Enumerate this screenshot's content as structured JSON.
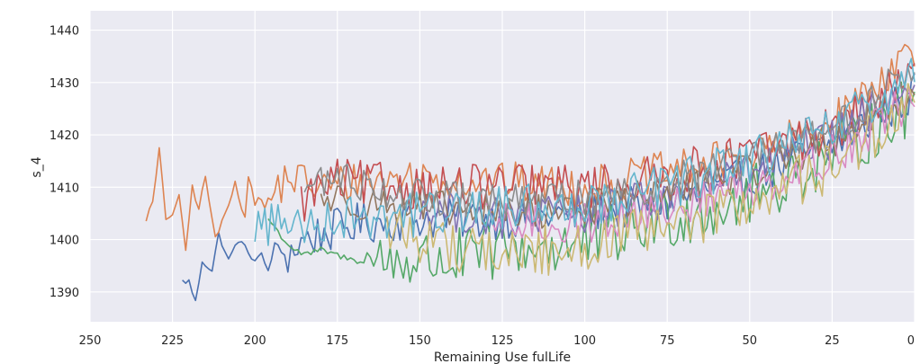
{
  "chart_data": {
    "type": "line",
    "xlabel": "Remaining Use fulLife",
    "ylabel": "s_4",
    "xlim": [
      250,
      0
    ],
    "ylim": [
      1384.3,
      1443.7
    ],
    "x_inverted": true,
    "grid": true,
    "legend": "none",
    "background": "#eaeaf2",
    "xticks": [
      250,
      225,
      200,
      175,
      150,
      125,
      100,
      75,
      50,
      25,
      0
    ],
    "yticks": [
      1390,
      1400,
      1410,
      1420,
      1430,
      1440
    ],
    "series": [
      {
        "color": "#4c72b0",
        "start_rul": 222,
        "start": 1392,
        "end": 1428,
        "amp": 4.0,
        "keypoints": [
          [
            222,
            1392
          ],
          [
            220,
            1392
          ],
          [
            218,
            1388
          ],
          [
            216,
            1396
          ],
          [
            213,
            1394
          ],
          [
            211,
            1401
          ],
          [
            208,
            1396
          ],
          [
            205,
            1400
          ],
          [
            200,
            1396
          ],
          [
            198,
            1397
          ],
          [
            196,
            1394
          ],
          [
            194,
            1399
          ],
          [
            190,
            1397
          ],
          [
            185,
            1400
          ],
          [
            180,
            1401
          ],
          [
            170,
            1403
          ],
          [
            150,
            1404
          ],
          [
            125,
            1404
          ],
          [
            100,
            1405
          ],
          [
            75,
            1407
          ],
          [
            50,
            1412
          ],
          [
            25,
            1418
          ],
          [
            0,
            1428
          ]
        ]
      },
      {
        "color": "#dd8452",
        "start_rul": 233,
        "start": 1404,
        "end": 1437,
        "amp": 4.0,
        "keypoints": [
          [
            233,
            1404
          ],
          [
            231,
            1407
          ],
          [
            229,
            1417
          ],
          [
            227,
            1404
          ],
          [
            225,
            1405
          ],
          [
            223,
            1408
          ],
          [
            221,
            1398
          ],
          [
            219,
            1410
          ],
          [
            217,
            1406
          ],
          [
            215,
            1412
          ],
          [
            212,
            1400
          ],
          [
            209,
            1405
          ],
          [
            206,
            1411
          ],
          [
            203,
            1404
          ],
          [
            201,
            1412
          ],
          [
            198,
            1405
          ],
          [
            196,
            1407
          ],
          [
            193,
            1410
          ],
          [
            190,
            1412
          ],
          [
            185,
            1411
          ],
          [
            180,
            1410
          ],
          [
            170,
            1411
          ],
          [
            150,
            1412
          ],
          [
            125,
            1411
          ],
          [
            100,
            1410
          ],
          [
            75,
            1413
          ],
          [
            50,
            1416
          ],
          [
            25,
            1422
          ],
          [
            0,
            1437
          ]
        ]
      },
      {
        "color": "#55a868",
        "start_rul": 196,
        "start": 1404,
        "end": 1426,
        "amp": 6.0,
        "keypoints": [
          [
            196,
            1404
          ],
          [
            190,
            1399
          ],
          [
            185,
            1397
          ],
          [
            180,
            1398
          ],
          [
            170,
            1396
          ],
          [
            160,
            1396
          ],
          [
            150,
            1396
          ],
          [
            140,
            1396
          ],
          [
            125,
            1398
          ],
          [
            110,
            1399
          ],
          [
            100,
            1399
          ],
          [
            90,
            1401
          ],
          [
            75,
            1404
          ],
          [
            50,
            1408
          ],
          [
            25,
            1416
          ],
          [
            0,
            1426
          ]
        ]
      },
      {
        "color": "#c44e52",
        "start_rul": 186,
        "start": 1407,
        "end": 1431,
        "amp": 4.5,
        "keypoints": [
          [
            186,
            1407
          ],
          [
            180,
            1410
          ],
          [
            175,
            1411
          ],
          [
            150,
            1410
          ],
          [
            125,
            1410
          ],
          [
            100,
            1410
          ],
          [
            85,
            1411
          ],
          [
            75,
            1412
          ],
          [
            50,
            1416
          ],
          [
            25,
            1421
          ],
          [
            0,
            1431
          ]
        ]
      },
      {
        "color": "#8172b3",
        "start_rul": 150,
        "start": 1406,
        "end": 1430,
        "amp": 4.0,
        "keypoints": [
          [
            150,
            1406
          ],
          [
            125,
            1404
          ],
          [
            100,
            1405
          ],
          [
            75,
            1408
          ],
          [
            50,
            1413
          ],
          [
            25,
            1419
          ],
          [
            0,
            1430
          ]
        ]
      },
      {
        "color": "#937860",
        "start_rul": 180,
        "start": 1408,
        "end": 1428,
        "amp": 3.5,
        "keypoints": [
          [
            180,
            1408
          ],
          [
            150,
            1406
          ],
          [
            125,
            1405
          ],
          [
            100,
            1406
          ],
          [
            75,
            1409
          ],
          [
            50,
            1413
          ],
          [
            25,
            1419
          ],
          [
            0,
            1428
          ]
        ]
      },
      {
        "color": "#da8bc3",
        "start_rul": 130,
        "start": 1403,
        "end": 1427,
        "amp": 4.0,
        "keypoints": [
          [
            130,
            1403
          ],
          [
            100,
            1403
          ],
          [
            75,
            1406
          ],
          [
            50,
            1410
          ],
          [
            25,
            1416
          ],
          [
            0,
            1427
          ]
        ]
      },
      {
        "color": "#8c8c8c",
        "start_rul": 185,
        "start": 1410,
        "end": 1433,
        "amp": 3.5,
        "keypoints": [
          [
            185,
            1410
          ],
          [
            175,
            1412
          ],
          [
            150,
            1408
          ],
          [
            125,
            1407
          ],
          [
            100,
            1408
          ],
          [
            75,
            1411
          ],
          [
            50,
            1415
          ],
          [
            25,
            1421
          ],
          [
            0,
            1433
          ]
        ]
      },
      {
        "color": "#ccb974",
        "start_rul": 160,
        "start": 1402,
        "end": 1426,
        "amp": 5.0,
        "keypoints": [
          [
            160,
            1402
          ],
          [
            140,
            1399
          ],
          [
            125,
            1397
          ],
          [
            100,
            1399
          ],
          [
            75,
            1402
          ],
          [
            50,
            1407
          ],
          [
            25,
            1414
          ],
          [
            0,
            1426
          ]
        ]
      },
      {
        "color": "#64b5cd",
        "start_rul": 200,
        "start": 1403,
        "end": 1431,
        "amp": 4.5,
        "keypoints": [
          [
            200,
            1403
          ],
          [
            190,
            1403
          ],
          [
            180,
            1404
          ],
          [
            150,
            1405
          ],
          [
            125,
            1406
          ],
          [
            100,
            1407
          ],
          [
            75,
            1410
          ],
          [
            50,
            1415
          ],
          [
            25,
            1421
          ],
          [
            0,
            1431
          ]
        ]
      }
    ]
  }
}
